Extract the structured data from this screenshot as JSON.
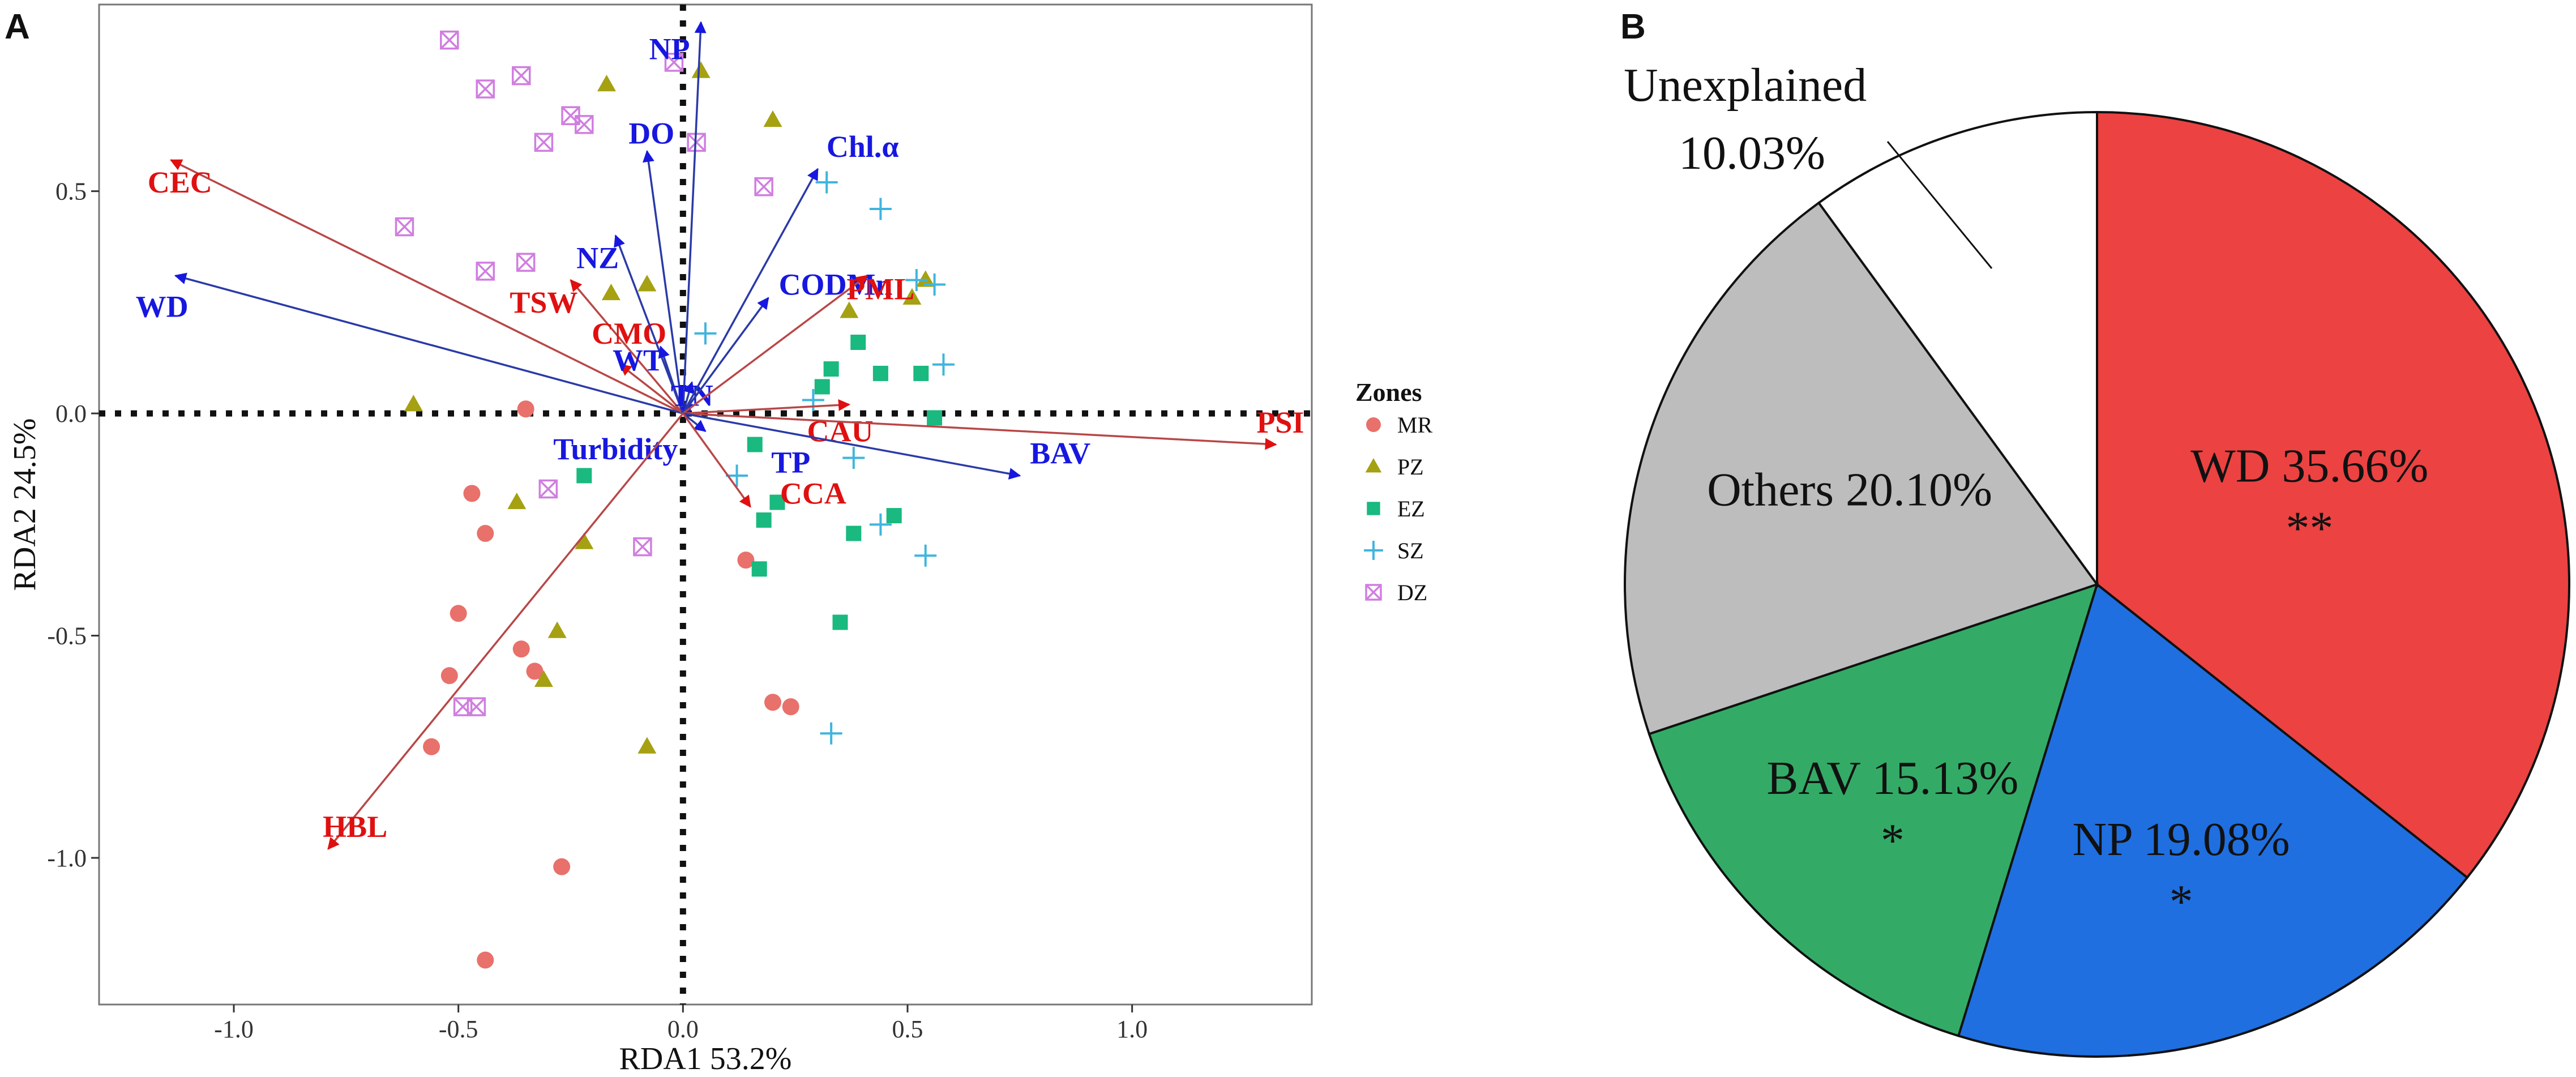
{
  "panels": {
    "a": "A",
    "b": "B"
  },
  "colors": {
    "env_arrow": "#b94747",
    "env_label": "#e01010",
    "bio_arrow": "#2a3aa8",
    "bio_label": "#1717e0",
    "frame": "#777777"
  },
  "chart_data": [
    {
      "type": "scatter",
      "subtype": "rda_triplot",
      "xlabel": "RDA1 53.2%",
      "ylabel": "RDA2 24.5%",
      "xlim": [
        -1.3,
        1.4
      ],
      "ylim": [
        -1.33,
        0.92
      ],
      "xticks": [
        -1.0,
        -0.5,
        0.0,
        0.5,
        1.0
      ],
      "xtick_labels": [
        "-1.0",
        "-0.5",
        "0.0",
        "0.5",
        "1.0"
      ],
      "yticks": [
        -1.0,
        -0.5,
        0.0,
        0.5
      ],
      "ytick_labels": [
        "-1.0",
        "-0.5",
        "0.0",
        "0.5"
      ],
      "legend": {
        "title": "Zones",
        "position": "right",
        "entries": [
          {
            "label": "MR",
            "color": "#e8716b",
            "shape": "circle"
          },
          {
            "label": "PZ",
            "color": "#a5a112",
            "shape": "triangle"
          },
          {
            "label": "EZ",
            "color": "#19b97f",
            "shape": "square"
          },
          {
            "label": "SZ",
            "color": "#3fb5dd",
            "shape": "plus"
          },
          {
            "label": "DZ",
            "color": "#d07ee0",
            "shape": "boxcross"
          }
        ]
      },
      "arrows": [
        {
          "label": "CEC",
          "group": "env",
          "x": -1.14,
          "y": 0.57,
          "lx": -1.12,
          "ly": 0.52
        },
        {
          "label": "WD",
          "group": "bio",
          "x": -1.13,
          "y": 0.31,
          "lx": -1.16,
          "ly": 0.24
        },
        {
          "label": "TSW",
          "group": "env",
          "x": -0.25,
          "y": 0.3,
          "lx": -0.31,
          "ly": 0.25
        },
        {
          "label": "CMO",
          "group": "env",
          "x": -0.14,
          "y": 0.11,
          "lx": -0.12,
          "ly": 0.18
        },
        {
          "label": "NZ",
          "group": "bio",
          "x": -0.15,
          "y": 0.4,
          "lx": -0.19,
          "ly": 0.35
        },
        {
          "label": "DO",
          "group": "bio",
          "x": -0.08,
          "y": 0.59,
          "lx": -0.07,
          "ly": 0.63
        },
        {
          "label": "NP",
          "group": "bio",
          "x": 0.04,
          "y": 0.88,
          "lx": -0.03,
          "ly": 0.82
        },
        {
          "label": "WT",
          "group": "bio",
          "x": -0.05,
          "y": 0.15,
          "lx": -0.1,
          "ly": 0.12
        },
        {
          "label": "TN",
          "group": "bio",
          "x": 0.02,
          "y": 0.07,
          "lx": 0.02,
          "ly": 0.04
        },
        {
          "label": "Turbidity",
          "group": "bio",
          "x": 0.02,
          "y": 0.02,
          "lx": -0.15,
          "ly": -0.08
        },
        {
          "label": "Chl.α",
          "group": "bio",
          "x": 0.3,
          "y": 0.55,
          "lx": 0.4,
          "ly": 0.6
        },
        {
          "label": "CODMn",
          "group": "bio",
          "x": 0.19,
          "y": 0.26,
          "lx": 0.34,
          "ly": 0.29
        },
        {
          "label": "PML",
          "group": "env",
          "x": 0.41,
          "y": 0.31,
          "lx": 0.44,
          "ly": 0.28
        },
        {
          "label": "CAU",
          "group": "env",
          "x": 0.37,
          "y": 0.02,
          "lx": 0.35,
          "ly": -0.04
        },
        {
          "label": "PSI",
          "group": "env",
          "x": 1.32,
          "y": -0.07,
          "lx": 1.33,
          "ly": -0.02
        },
        {
          "label": "BAV",
          "group": "bio",
          "x": 0.75,
          "y": -0.14,
          "lx": 0.84,
          "ly": -0.09
        },
        {
          "label": "TP",
          "group": "bio",
          "x": 0.05,
          "y": -0.04,
          "lx": 0.24,
          "ly": -0.11
        },
        {
          "label": "CCA",
          "group": "env",
          "x": 0.15,
          "y": -0.21,
          "lx": 0.29,
          "ly": -0.18
        },
        {
          "label": "HBL",
          "group": "env",
          "x": -0.79,
          "y": -0.98,
          "lx": -0.73,
          "ly": -0.93
        }
      ],
      "series": [
        {
          "name": "MR",
          "points": [
            [
              -0.35,
              0.01
            ],
            [
              -0.47,
              -0.18
            ],
            [
              -0.44,
              -0.27
            ],
            [
              -0.5,
              -0.45
            ],
            [
              -0.52,
              -0.59
            ],
            [
              -0.56,
              -0.75
            ],
            [
              -0.36,
              -0.53
            ],
            [
              -0.33,
              -0.58
            ],
            [
              -0.27,
              -1.02
            ],
            [
              -0.44,
              -1.23
            ],
            [
              0.14,
              -0.33
            ],
            [
              0.2,
              -0.65
            ],
            [
              0.24,
              -0.66
            ]
          ]
        },
        {
          "name": "PZ",
          "points": [
            [
              -0.6,
              0.02
            ],
            [
              -0.37,
              -0.2
            ],
            [
              -0.22,
              -0.29
            ],
            [
              -0.28,
              -0.49
            ],
            [
              -0.31,
              -0.6
            ],
            [
              -0.08,
              -0.75
            ],
            [
              -0.17,
              0.74
            ],
            [
              0.04,
              0.77
            ],
            [
              0.2,
              0.66
            ],
            [
              -0.16,
              0.27
            ],
            [
              -0.08,
              0.29
            ],
            [
              0.37,
              0.23
            ],
            [
              0.51,
              0.26
            ],
            [
              0.54,
              0.3
            ]
          ]
        },
        {
          "name": "EZ",
          "points": [
            [
              -0.22,
              -0.14
            ],
            [
              0.16,
              -0.07
            ],
            [
              0.31,
              0.06
            ],
            [
              0.33,
              0.1
            ],
            [
              0.39,
              0.16
            ],
            [
              0.44,
              0.09
            ],
            [
              0.53,
              0.09
            ],
            [
              0.56,
              -0.01
            ],
            [
              0.38,
              -0.27
            ],
            [
              0.47,
              -0.23
            ],
            [
              0.21,
              -0.2
            ],
            [
              0.18,
              -0.24
            ],
            [
              0.17,
              -0.35
            ],
            [
              0.35,
              -0.47
            ]
          ]
        },
        {
          "name": "SZ",
          "points": [
            [
              0.05,
              0.18
            ],
            [
              0.29,
              0.03
            ],
            [
              0.32,
              0.52
            ],
            [
              0.44,
              0.46
            ],
            [
              0.52,
              0.3
            ],
            [
              0.58,
              0.11
            ],
            [
              0.56,
              0.29
            ],
            [
              0.38,
              -0.1
            ],
            [
              0.44,
              -0.25
            ],
            [
              0.54,
              -0.32
            ],
            [
              0.12,
              -0.14
            ],
            [
              0.33,
              -0.72
            ]
          ]
        },
        {
          "name": "DZ",
          "points": [
            [
              -0.52,
              0.84
            ],
            [
              -0.44,
              0.73
            ],
            [
              -0.36,
              0.76
            ],
            [
              -0.31,
              0.61
            ],
            [
              -0.25,
              0.67
            ],
            [
              -0.22,
              0.65
            ],
            [
              -0.62,
              0.42
            ],
            [
              -0.44,
              0.32
            ],
            [
              -0.35,
              0.34
            ],
            [
              -0.02,
              0.79
            ],
            [
              0.03,
              0.61
            ],
            [
              0.18,
              0.51
            ],
            [
              -0.3,
              -0.17
            ],
            [
              -0.09,
              -0.3
            ],
            [
              -0.49,
              -0.66
            ],
            [
              -0.46,
              -0.66
            ]
          ]
        }
      ]
    },
    {
      "type": "pie",
      "start_angle_deg": 0,
      "direction": "clockwise",
      "slices": [
        {
          "label": "WD 35.66%",
          "value": 35.66,
          "sig": "**",
          "color": "#ec4242"
        },
        {
          "label": "NP 19.08%",
          "value": 19.08,
          "sig": "*",
          "color": "#1f6fe0"
        },
        {
          "label": "BAV 15.13%",
          "value": 15.13,
          "sig": "*",
          "color": "#33ab66"
        },
        {
          "label": "Others 20.10%",
          "value": 20.1,
          "sig": "",
          "color": "#bdbdbd"
        },
        {
          "label": "Unexplained 10.03%",
          "value": 10.03,
          "sig": "",
          "color": "#ffffff"
        }
      ],
      "external_label": {
        "line1": "Unexplained",
        "line2": "10.03%"
      }
    }
  ]
}
